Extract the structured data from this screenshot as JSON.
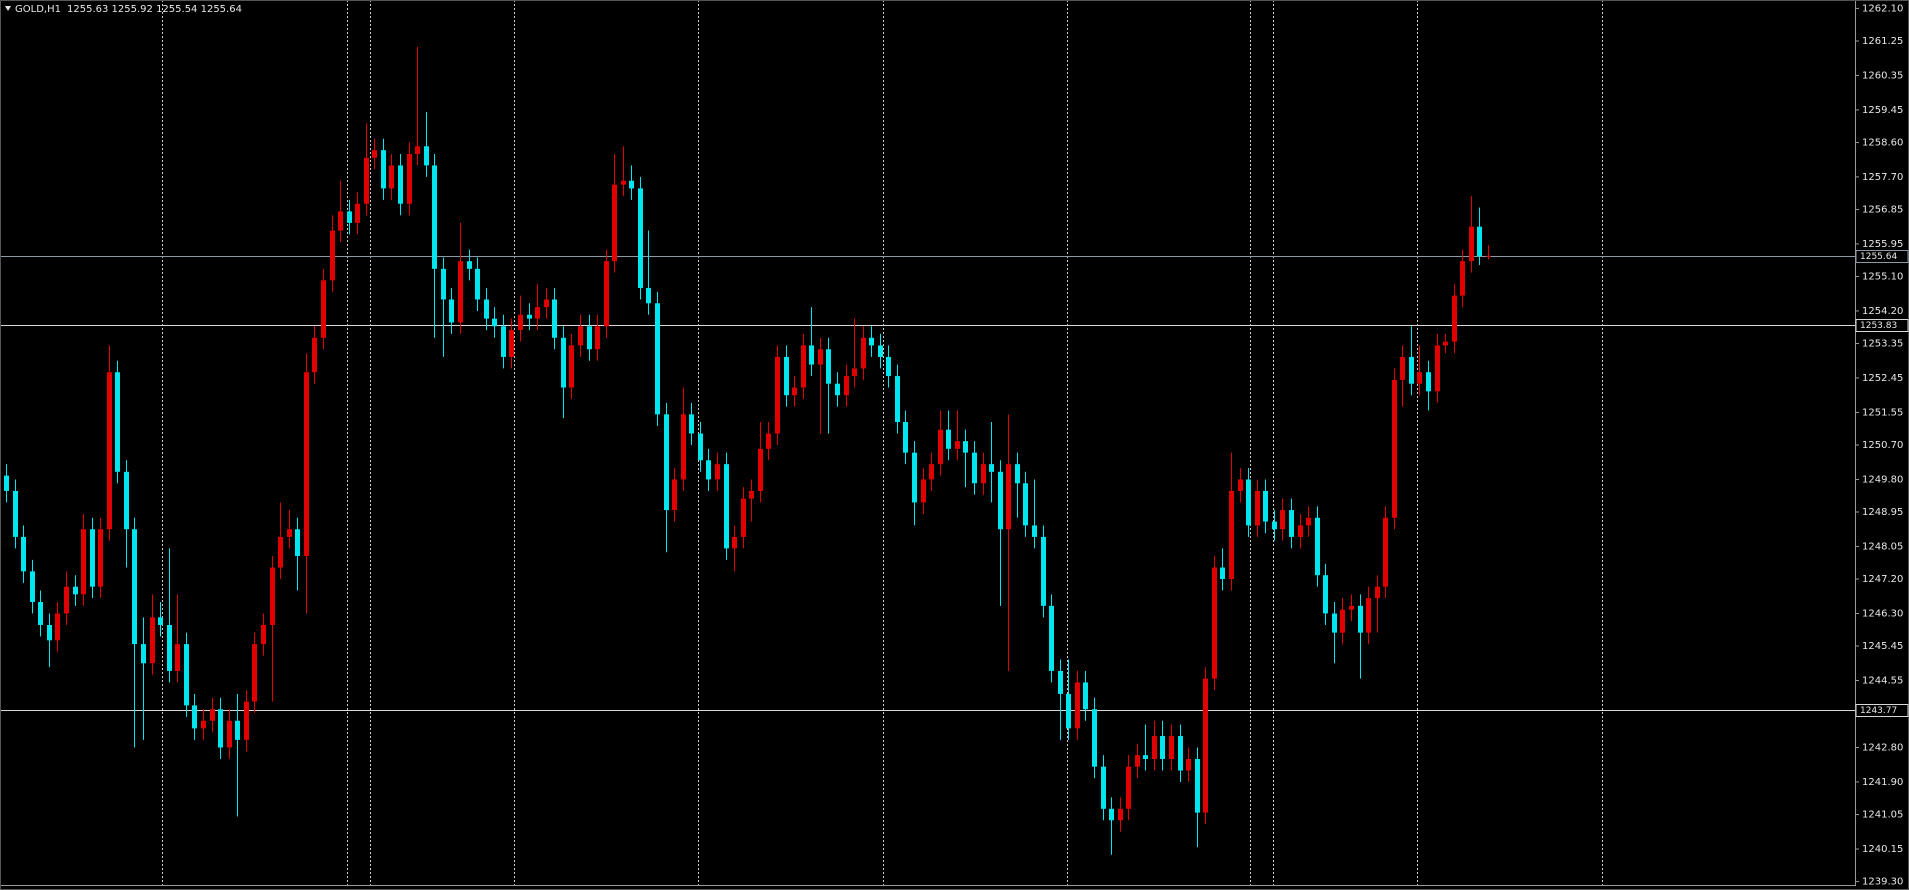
{
  "chart_data": {
    "type": "candlestick",
    "title": "GOLD,H1",
    "subtitle": "1255.63 1255.92 1255.54 1255.64",
    "up_color": "#e00000",
    "down_color": "#00e6ee",
    "open": [
      1249.9,
      1249.5,
      1248.3,
      1247.4,
      1246.6,
      1246.0,
      1245.6,
      1246.3,
      1247.0,
      1246.8,
      1248.5,
      1247.0,
      1248.5,
      1252.6,
      1250.0,
      1248.5,
      1245.5,
      1245.0,
      1246.2,
      1246.0,
      1244.8,
      1245.5,
      1243.9,
      1243.3,
      1243.5,
      1243.8,
      1242.8,
      1243.5,
      1243.0,
      1244.0,
      1245.5,
      1246.0,
      1247.5,
      1248.3,
      1248.5,
      1247.8,
      1252.6,
      1253.5,
      1255.0,
      1256.3,
      1256.8,
      1256.5,
      1257.0,
      1258.2,
      1258.4,
      1257.4,
      1258.0,
      1257.0,
      1258.3,
      1258.5,
      1258.0,
      1255.3,
      1254.5,
      1253.9,
      1255.5,
      1255.3,
      1254.5,
      1254.0,
      1253.8,
      1253.0,
      1253.7,
      1254.1,
      1254.0,
      1254.3,
      1254.5,
      1253.5,
      1252.2,
      1253.3,
      1253.8,
      1253.2,
      1253.8,
      1255.5,
      1257.5,
      1257.6,
      1257.4,
      1254.8,
      1254.4,
      1251.5,
      1249.0,
      1249.8,
      1251.5,
      1251.0,
      1250.3,
      1249.8,
      1250.2,
      1248.0,
      1248.3,
      1249.3,
      1249.5,
      1250.6,
      1251.0,
      1253.0,
      1252.0,
      1252.2,
      1253.3,
      1252.8,
      1253.2,
      1252.3,
      1252.0,
      1252.5,
      1252.7,
      1253.5,
      1253.3,
      1253.0,
      1252.5,
      1251.3,
      1250.5,
      1249.2,
      1249.8,
      1250.2,
      1251.1,
      1250.6,
      1250.8,
      1250.5,
      1249.7,
      1250.2,
      1250.0,
      1248.5,
      1250.2,
      1249.7,
      1248.6,
      1248.3,
      1246.5,
      1244.8,
      1244.2,
      1243.3,
      1244.5,
      1243.8,
      1242.3,
      1241.2,
      1240.9,
      1241.2,
      1242.3,
      1242.6,
      1242.5,
      1243.1,
      1242.5,
      1243.1,
      1242.2,
      1242.5,
      1241.1,
      1244.6,
      1247.5,
      1247.2,
      1249.5,
      1249.8,
      1248.6,
      1249.5,
      1248.7,
      1248.5,
      1249.0,
      1248.3,
      1248.6,
      1248.8,
      1247.3,
      1246.3,
      1245.8,
      1246.4,
      1246.5,
      1245.8,
      1246.7,
      1247.0,
      1248.8,
      1252.4,
      1253.0,
      1252.3,
      1252.6,
      1252.1,
      1253.3,
      1253.4,
      1254.6,
      1255.5,
      1256.4,
      1255.63
    ],
    "high": [
      1250.2,
      1249.8,
      1248.6,
      1247.7,
      1246.9,
      1246.3,
      1246.6,
      1247.4,
      1247.3,
      1248.9,
      1248.8,
      1248.8,
      1253.3,
      1252.9,
      1250.3,
      1248.8,
      1246.2,
      1246.8,
      1246.6,
      1248.0,
      1246.8,
      1245.8,
      1244.2,
      1243.8,
      1244.1,
      1244.1,
      1243.8,
      1244.2,
      1244.3,
      1245.8,
      1246.3,
      1247.8,
      1249.2,
      1249.0,
      1248.8,
      1253.1,
      1253.8,
      1255.3,
      1256.7,
      1257.6,
      1257.1,
      1257.3,
      1259.1,
      1258.7,
      1258.7,
      1258.3,
      1258.3,
      1258.6,
      1261.1,
      1259.4,
      1258.3,
      1255.6,
      1254.8,
      1256.5,
      1255.8,
      1255.6,
      1254.8,
      1254.3,
      1254.1,
      1254.0,
      1254.6,
      1254.4,
      1254.9,
      1254.8,
      1254.8,
      1253.8,
      1253.6,
      1254.1,
      1254.1,
      1254.1,
      1255.8,
      1258.3,
      1258.5,
      1258.0,
      1257.7,
      1256.3,
      1254.7,
      1251.8,
      1250.1,
      1252.2,
      1251.8,
      1251.3,
      1250.6,
      1250.5,
      1250.5,
      1248.6,
      1249.6,
      1249.8,
      1251.3,
      1251.3,
      1253.3,
      1253.3,
      1252.5,
      1253.6,
      1254.3,
      1253.5,
      1253.5,
      1252.6,
      1252.8,
      1254.0,
      1253.8,
      1253.8,
      1253.6,
      1253.3,
      1252.8,
      1251.6,
      1250.8,
      1250.1,
      1250.5,
      1251.6,
      1251.6,
      1251.6,
      1251.1,
      1250.8,
      1250.5,
      1251.3,
      1250.3,
      1251.5,
      1250.5,
      1250.0,
      1249.8,
      1248.6,
      1246.8,
      1245.1,
      1245.1,
      1244.8,
      1244.8,
      1244.1,
      1242.6,
      1241.5,
      1241.5,
      1242.6,
      1242.9,
      1243.4,
      1243.5,
      1243.5,
      1243.4,
      1243.4,
      1242.8,
      1242.8,
      1244.9,
      1247.8,
      1248.0,
      1250.5,
      1250.1,
      1250.1,
      1249.8,
      1249.8,
      1249.0,
      1249.3,
      1249.3,
      1248.9,
      1249.1,
      1249.1,
      1247.6,
      1246.6,
      1246.7,
      1246.8,
      1246.8,
      1247.0,
      1247.3,
      1249.1,
      1252.7,
      1253.3,
      1253.8,
      1253.3,
      1252.9,
      1253.6,
      1253.6,
      1254.9,
      1255.8,
      1257.2,
      1256.9,
      1255.92
    ],
    "low": [
      1249.2,
      1248.0,
      1247.1,
      1246.3,
      1245.7,
      1244.9,
      1245.3,
      1246.0,
      1246.5,
      1246.5,
      1246.7,
      1246.7,
      1248.2,
      1249.7,
      1247.5,
      1242.8,
      1243.0,
      1244.7,
      1245.7,
      1244.5,
      1244.5,
      1243.6,
      1243.0,
      1243.0,
      1243.2,
      1242.5,
      1242.5,
      1241.0,
      1242.7,
      1243.7,
      1245.2,
      1244.0,
      1247.2,
      1248.0,
      1246.9,
      1246.3,
      1252.3,
      1253.2,
      1254.7,
      1256.0,
      1256.2,
      1256.2,
      1256.7,
      1257.9,
      1257.1,
      1257.1,
      1256.7,
      1256.7,
      1258.0,
      1257.7,
      1253.5,
      1253.0,
      1253.6,
      1253.6,
      1255.0,
      1254.2,
      1253.7,
      1253.5,
      1252.7,
      1252.7,
      1253.4,
      1253.7,
      1253.7,
      1254.0,
      1253.2,
      1251.4,
      1251.9,
      1253.0,
      1252.9,
      1252.9,
      1253.5,
      1255.2,
      1257.2,
      1257.1,
      1254.5,
      1254.1,
      1251.2,
      1247.9,
      1248.7,
      1249.5,
      1250.7,
      1250.0,
      1249.5,
      1249.5,
      1247.7,
      1247.4,
      1248.0,
      1248.7,
      1249.2,
      1250.3,
      1250.7,
      1251.7,
      1251.7,
      1251.9,
      1252.5,
      1251.0,
      1251.0,
      1251.7,
      1251.7,
      1252.2,
      1252.4,
      1253.0,
      1252.7,
      1252.2,
      1251.0,
      1250.2,
      1248.6,
      1248.9,
      1249.5,
      1249.9,
      1250.3,
      1250.3,
      1249.6,
      1249.4,
      1249.4,
      1249.2,
      1246.5,
      1244.8,
      1248.8,
      1248.3,
      1248.0,
      1246.2,
      1244.5,
      1243.0,
      1243.0,
      1243.0,
      1243.5,
      1242.0,
      1240.9,
      1240.0,
      1240.6,
      1240.9,
      1242.0,
      1242.2,
      1242.2,
      1242.2,
      1242.2,
      1241.9,
      1241.9,
      1240.2,
      1240.8,
      1244.3,
      1246.9,
      1246.9,
      1249.2,
      1248.3,
      1248.3,
      1248.4,
      1248.2,
      1248.2,
      1248.0,
      1248.0,
      1248.3,
      1247.0,
      1246.0,
      1245.0,
      1245.5,
      1246.1,
      1244.6,
      1245.5,
      1245.8,
      1246.7,
      1248.5,
      1251.7,
      1252.0,
      1252.0,
      1251.6,
      1251.8,
      1253.1,
      1253.1,
      1254.3,
      1255.2,
      1255.4,
      1255.54
    ],
    "close": [
      1249.5,
      1248.3,
      1247.4,
      1246.6,
      1246.0,
      1245.6,
      1246.3,
      1247.0,
      1246.8,
      1248.5,
      1247.0,
      1248.5,
      1252.6,
      1250.0,
      1248.5,
      1245.5,
      1245.0,
      1246.2,
      1246.0,
      1244.8,
      1245.5,
      1243.9,
      1243.3,
      1243.5,
      1243.8,
      1242.8,
      1243.5,
      1243.0,
      1244.0,
      1245.5,
      1246.0,
      1247.5,
      1248.3,
      1248.5,
      1247.8,
      1252.6,
      1253.5,
      1255.0,
      1256.3,
      1256.8,
      1256.5,
      1257.0,
      1258.2,
      1258.4,
      1257.4,
      1258.0,
      1257.0,
      1258.3,
      1258.5,
      1258.0,
      1255.3,
      1254.5,
      1253.9,
      1255.5,
      1255.3,
      1254.5,
      1254.0,
      1253.8,
      1253.0,
      1253.7,
      1254.1,
      1254.0,
      1254.3,
      1254.5,
      1253.5,
      1252.2,
      1253.3,
      1253.8,
      1253.2,
      1253.8,
      1255.5,
      1257.5,
      1257.6,
      1257.4,
      1254.8,
      1254.4,
      1251.5,
      1249.0,
      1249.8,
      1251.5,
      1251.0,
      1250.3,
      1249.8,
      1250.2,
      1248.0,
      1248.3,
      1249.3,
      1249.5,
      1250.6,
      1251.0,
      1253.0,
      1252.0,
      1252.2,
      1253.3,
      1252.8,
      1253.2,
      1252.3,
      1252.0,
      1252.5,
      1252.7,
      1253.5,
      1253.3,
      1253.0,
      1252.5,
      1251.3,
      1250.5,
      1249.2,
      1249.8,
      1250.2,
      1251.1,
      1250.6,
      1250.8,
      1250.5,
      1249.7,
      1250.2,
      1250.0,
      1248.5,
      1250.2,
      1249.7,
      1248.6,
      1248.3,
      1246.5,
      1244.8,
      1244.2,
      1243.3,
      1244.5,
      1243.8,
      1242.3,
      1241.2,
      1240.9,
      1241.2,
      1242.3,
      1242.6,
      1242.5,
      1243.1,
      1242.5,
      1243.1,
      1242.2,
      1242.5,
      1241.1,
      1244.6,
      1247.5,
      1247.2,
      1249.5,
      1249.8,
      1248.6,
      1249.5,
      1248.7,
      1248.5,
      1249.0,
      1248.3,
      1248.6,
      1248.8,
      1247.3,
      1246.3,
      1245.8,
      1246.4,
      1246.5,
      1245.8,
      1246.7,
      1247.0,
      1248.8,
      1252.4,
      1253.0,
      1252.3,
      1252.6,
      1252.1,
      1253.3,
      1253.4,
      1254.6,
      1255.5,
      1256.4,
      1255.63,
      1255.64
    ],
    "ylim": [
      1239.21,
      1262.32
    ],
    "yticks": [
      {
        "value": 1262.1,
        "label": "1262.10"
      },
      1261.25,
      1260.35,
      1259.45,
      {
        "value": 1258.6,
        "label": "1258.60"
      },
      {
        "value": 1257.7,
        "label": "1257.70"
      },
      1256.85,
      1255.95,
      {
        "value": 1255.1,
        "label": "1255.10"
      },
      {
        "value": 1254.2,
        "label": "1254.20"
      },
      1253.35,
      1252.45,
      1251.55,
      {
        "value": 1250.7,
        "label": "1250.70"
      },
      {
        "value": 1249.8,
        "label": "1249.80"
      },
      1248.95,
      1248.05,
      {
        "value": 1247.2,
        "label": "1247.20"
      },
      {
        "value": 1246.3,
        "label": "1246.30"
      },
      1245.45,
      1244.55,
      {
        "value": 1242.8,
        "label": "1242.80"
      },
      {
        "value": 1241.9,
        "label": "1241.90"
      },
      1241.05,
      1240.15,
      {
        "value": 1239.3,
        "label": "1239.30"
      }
    ],
    "levels": [
      {
        "value": 1255.64,
        "color": "#8c9aa8"
      },
      {
        "value": 1253.83,
        "color": "#d8d8d8"
      },
      {
        "value": 1243.77,
        "color": "#d8d8d8"
      }
    ]
  }
}
